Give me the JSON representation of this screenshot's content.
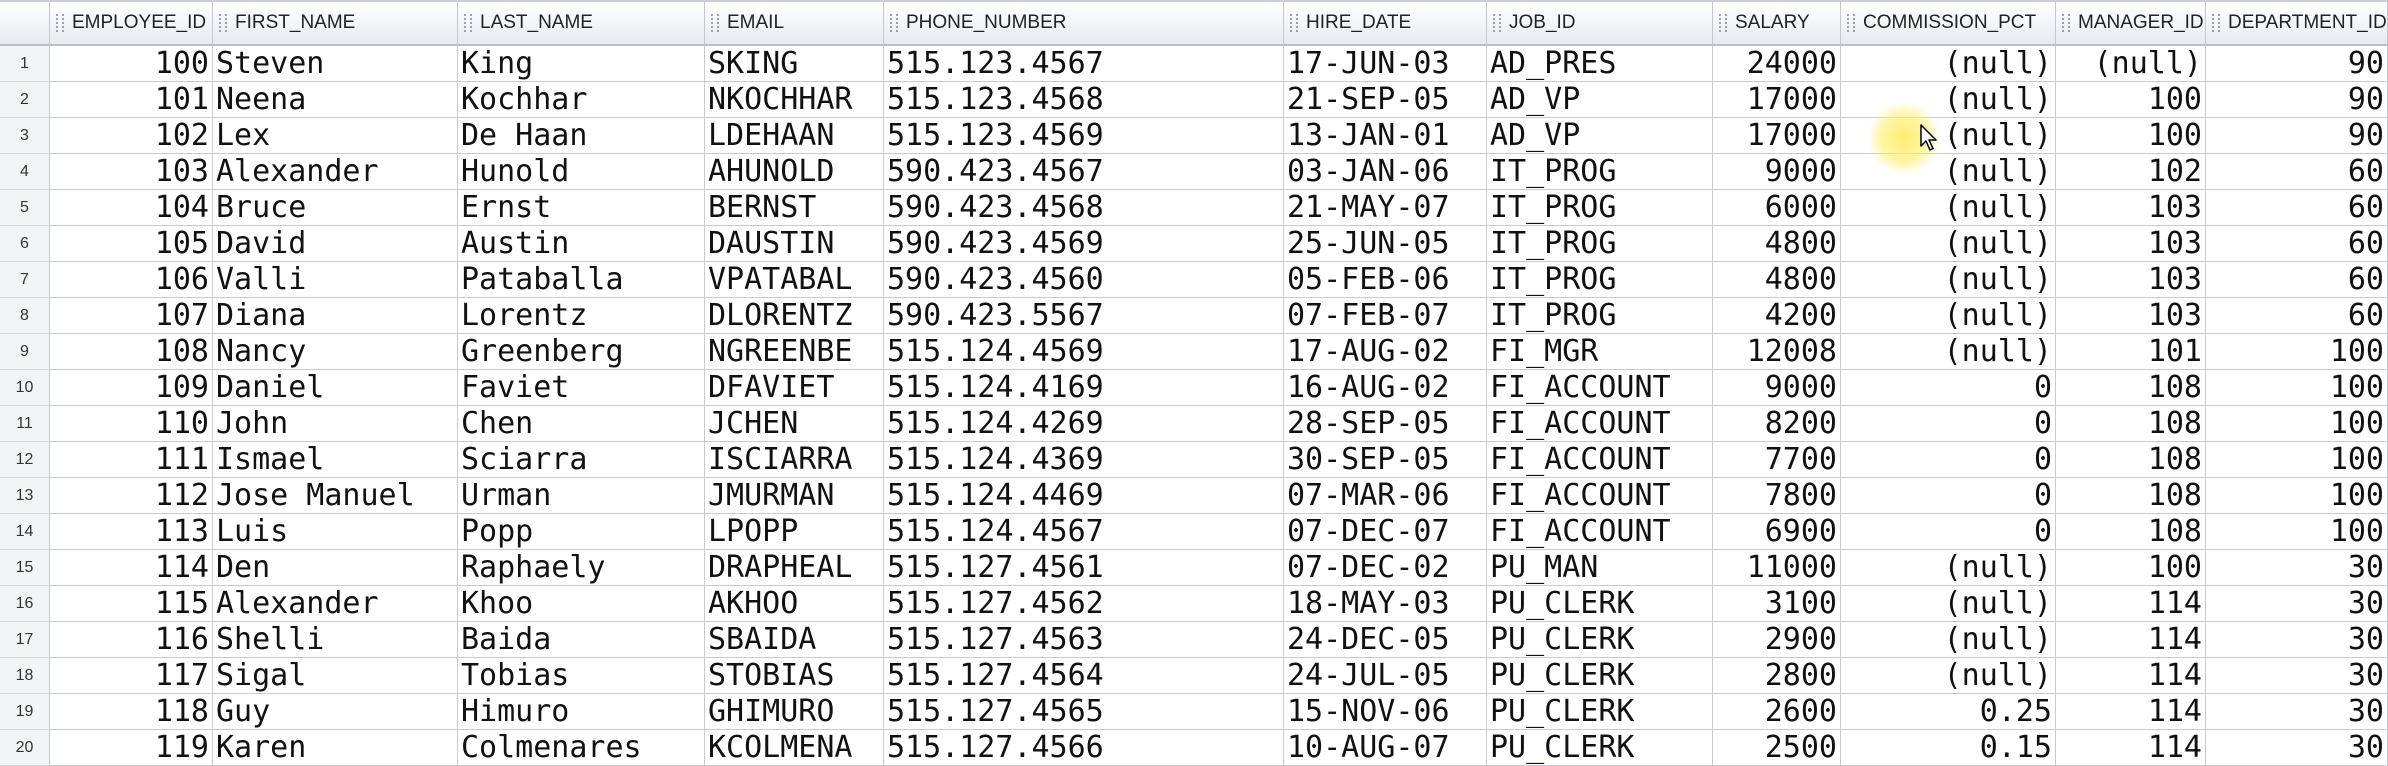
{
  "grid": {
    "columns": [
      {
        "key": "employee_id",
        "label": "EMPLOYEE_ID",
        "align": "right"
      },
      {
        "key": "first_name",
        "label": "FIRST_NAME",
        "align": "left"
      },
      {
        "key": "last_name",
        "label": "LAST_NAME",
        "align": "left"
      },
      {
        "key": "email",
        "label": "EMAIL",
        "align": "left"
      },
      {
        "key": "phone_number",
        "label": "PHONE_NUMBER",
        "align": "left"
      },
      {
        "key": "hire_date",
        "label": "HIRE_DATE",
        "align": "left"
      },
      {
        "key": "job_id",
        "label": "JOB_ID",
        "align": "left"
      },
      {
        "key": "salary",
        "label": "SALARY",
        "align": "right"
      },
      {
        "key": "commission_pct",
        "label": "COMMISSION_PCT",
        "align": "right"
      },
      {
        "key": "manager_id",
        "label": "MANAGER_ID",
        "align": "right"
      },
      {
        "key": "department_id",
        "label": "DEPARTMENT_ID",
        "align": "right"
      }
    ],
    "rows": [
      {
        "n": "1",
        "employee_id": "100",
        "first_name": "Steven",
        "last_name": "King",
        "email": "SKING",
        "phone_number": "515.123.4567",
        "hire_date": "17-JUN-03",
        "job_id": "AD_PRES",
        "salary": "24000",
        "commission_pct": "(null)",
        "manager_id": "(null)",
        "department_id": "90"
      },
      {
        "n": "2",
        "employee_id": "101",
        "first_name": "Neena",
        "last_name": "Kochhar",
        "email": "NKOCHHAR",
        "phone_number": "515.123.4568",
        "hire_date": "21-SEP-05",
        "job_id": "AD_VP",
        "salary": "17000",
        "commission_pct": "(null)",
        "manager_id": "100",
        "department_id": "90"
      },
      {
        "n": "3",
        "employee_id": "102",
        "first_name": "Lex",
        "last_name": "De Haan",
        "email": "LDEHAAN",
        "phone_number": "515.123.4569",
        "hire_date": "13-JAN-01",
        "job_id": "AD_VP",
        "salary": "17000",
        "commission_pct": "(null)",
        "manager_id": "100",
        "department_id": "90"
      },
      {
        "n": "4",
        "employee_id": "103",
        "first_name": "Alexander",
        "last_name": "Hunold",
        "email": "AHUNOLD",
        "phone_number": "590.423.4567",
        "hire_date": "03-JAN-06",
        "job_id": "IT_PROG",
        "salary": "9000",
        "commission_pct": "(null)",
        "manager_id": "102",
        "department_id": "60"
      },
      {
        "n": "5",
        "employee_id": "104",
        "first_name": "Bruce",
        "last_name": "Ernst",
        "email": "BERNST",
        "phone_number": "590.423.4568",
        "hire_date": "21-MAY-07",
        "job_id": "IT_PROG",
        "salary": "6000",
        "commission_pct": "(null)",
        "manager_id": "103",
        "department_id": "60"
      },
      {
        "n": "6",
        "employee_id": "105",
        "first_name": "David",
        "last_name": "Austin",
        "email": "DAUSTIN",
        "phone_number": "590.423.4569",
        "hire_date": "25-JUN-05",
        "job_id": "IT_PROG",
        "salary": "4800",
        "commission_pct": "(null)",
        "manager_id": "103",
        "department_id": "60"
      },
      {
        "n": "7",
        "employee_id": "106",
        "first_name": "Valli",
        "last_name": "Pataballa",
        "email": "VPATABAL",
        "phone_number": "590.423.4560",
        "hire_date": "05-FEB-06",
        "job_id": "IT_PROG",
        "salary": "4800",
        "commission_pct": "(null)",
        "manager_id": "103",
        "department_id": "60"
      },
      {
        "n": "8",
        "employee_id": "107",
        "first_name": "Diana",
        "last_name": "Lorentz",
        "email": "DLORENTZ",
        "phone_number": "590.423.5567",
        "hire_date": "07-FEB-07",
        "job_id": "IT_PROG",
        "salary": "4200",
        "commission_pct": "(null)",
        "manager_id": "103",
        "department_id": "60"
      },
      {
        "n": "9",
        "employee_id": "108",
        "first_name": "Nancy",
        "last_name": "Greenberg",
        "email": "NGREENBE",
        "phone_number": "515.124.4569",
        "hire_date": "17-AUG-02",
        "job_id": "FI_MGR",
        "salary": "12008",
        "commission_pct": "(null)",
        "manager_id": "101",
        "department_id": "100"
      },
      {
        "n": "10",
        "employee_id": "109",
        "first_name": "Daniel",
        "last_name": "Faviet",
        "email": "DFAVIET",
        "phone_number": "515.124.4169",
        "hire_date": "16-AUG-02",
        "job_id": "FI_ACCOUNT",
        "salary": "9000",
        "commission_pct": "0",
        "manager_id": "108",
        "department_id": "100"
      },
      {
        "n": "11",
        "employee_id": "110",
        "first_name": "John",
        "last_name": "Chen",
        "email": "JCHEN",
        "phone_number": "515.124.4269",
        "hire_date": "28-SEP-05",
        "job_id": "FI_ACCOUNT",
        "salary": "8200",
        "commission_pct": "0",
        "manager_id": "108",
        "department_id": "100"
      },
      {
        "n": "12",
        "employee_id": "111",
        "first_name": "Ismael",
        "last_name": "Sciarra",
        "email": "ISCIARRA",
        "phone_number": "515.124.4369",
        "hire_date": "30-SEP-05",
        "job_id": "FI_ACCOUNT",
        "salary": "7700",
        "commission_pct": "0",
        "manager_id": "108",
        "department_id": "100"
      },
      {
        "n": "13",
        "employee_id": "112",
        "first_name": "Jose Manuel",
        "last_name": "Urman",
        "email": "JMURMAN",
        "phone_number": "515.124.4469",
        "hire_date": "07-MAR-06",
        "job_id": "FI_ACCOUNT",
        "salary": "7800",
        "commission_pct": "0",
        "manager_id": "108",
        "department_id": "100"
      },
      {
        "n": "14",
        "employee_id": "113",
        "first_name": "Luis",
        "last_name": "Popp",
        "email": "LPOPP",
        "phone_number": "515.124.4567",
        "hire_date": "07-DEC-07",
        "job_id": "FI_ACCOUNT",
        "salary": "6900",
        "commission_pct": "0",
        "manager_id": "108",
        "department_id": "100"
      },
      {
        "n": "15",
        "employee_id": "114",
        "first_name": "Den",
        "last_name": "Raphaely",
        "email": "DRAPHEAL",
        "phone_number": "515.127.4561",
        "hire_date": "07-DEC-02",
        "job_id": "PU_MAN",
        "salary": "11000",
        "commission_pct": "(null)",
        "manager_id": "100",
        "department_id": "30"
      },
      {
        "n": "16",
        "employee_id": "115",
        "first_name": "Alexander",
        "last_name": "Khoo",
        "email": "AKHOO",
        "phone_number": "515.127.4562",
        "hire_date": "18-MAY-03",
        "job_id": "PU_CLERK",
        "salary": "3100",
        "commission_pct": "(null)",
        "manager_id": "114",
        "department_id": "30"
      },
      {
        "n": "17",
        "employee_id": "116",
        "first_name": "Shelli",
        "last_name": "Baida",
        "email": "SBAIDA",
        "phone_number": "515.127.4563",
        "hire_date": "24-DEC-05",
        "job_id": "PU_CLERK",
        "salary": "2900",
        "commission_pct": "(null)",
        "manager_id": "114",
        "department_id": "30"
      },
      {
        "n": "18",
        "employee_id": "117",
        "first_name": "Sigal",
        "last_name": "Tobias",
        "email": "STOBIAS",
        "phone_number": "515.127.4564",
        "hire_date": "24-JUL-05",
        "job_id": "PU_CLERK",
        "salary": "2800",
        "commission_pct": "(null)",
        "manager_id": "114",
        "department_id": "30"
      },
      {
        "n": "19",
        "employee_id": "118",
        "first_name": "Guy",
        "last_name": "Himuro",
        "email": "GHIMURO",
        "phone_number": "515.127.4565",
        "hire_date": "15-NOV-06",
        "job_id": "PU_CLERK",
        "salary": "2600",
        "commission_pct": "0.25",
        "manager_id": "114",
        "department_id": "30"
      },
      {
        "n": "20",
        "employee_id": "119",
        "first_name": "Karen",
        "last_name": "Colmenares",
        "email": "KCOLMENA",
        "phone_number": "515.127.4566",
        "hire_date": "10-AUG-07",
        "job_id": "PU_CLERK",
        "salary": "2500",
        "commission_pct": "0.15",
        "manager_id": "114",
        "department_id": "30"
      }
    ]
  },
  "cursor": {
    "icon": "mouse-pointer-icon",
    "highlight_color": "#ffe95a"
  }
}
